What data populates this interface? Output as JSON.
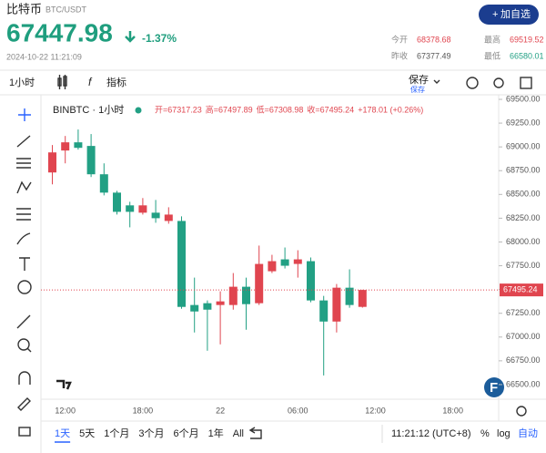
{
  "header": {
    "symbol": "比特币",
    "pair": "BTC/USDT",
    "price": "67447.98",
    "change": "-1.37%",
    "timestamp": "2024-10-22 11:21:09",
    "button": "加自选"
  },
  "stats": [
    {
      "label": "今开",
      "value": "68378.68",
      "color": "#e0454f"
    },
    {
      "label": "最高",
      "value": "69519.52",
      "color": "#e0454f"
    },
    {
      "label": "昨收",
      "value": "67377.49",
      "color": "#555555"
    },
    {
      "label": "最低",
      "value": "66580.01",
      "color": "#22a084"
    }
  ],
  "toolbar": {
    "interval": "1小时",
    "indicators": "指标",
    "save": "保存",
    "save_sub": "保存"
  },
  "chart_data": {
    "type": "candlestick",
    "title": "BINBTC · 1小时",
    "legend": [
      "开=67317.23",
      "高=67497.89",
      "低=67308.98",
      "收=67495.24",
      "+178.01 (+0.26%)"
    ],
    "categories": [
      null,
      "12:00",
      null,
      null,
      null,
      null,
      null,
      "18:00",
      null,
      null,
      null,
      null,
      null,
      "22",
      null,
      null,
      null,
      null,
      null,
      "06:00",
      null,
      null,
      null,
      null,
      null
    ],
    "xticks_after": [
      "12:00",
      "18:00"
    ],
    "open": [
      68731,
      68962,
      69048,
      69010,
      68712,
      68519,
      68385,
      68308,
      68308,
      68221,
      68221,
      67337,
      67356,
      67337,
      67337,
      67529,
      67356,
      67692,
      67817,
      67769,
      67798,
      67385,
      67163,
      67519,
      67317.23
    ],
    "high": [
      69019,
      69115,
      69183,
      69135,
      68827,
      68538,
      68423,
      68462,
      68442,
      68365,
      68269,
      67625,
      67385,
      67481,
      67673,
      67625,
      67962,
      67865,
      67942,
      67913,
      67837,
      67433,
      67558,
      67712,
      67497.89
    ],
    "low": [
      68606,
      68827,
      68971,
      68683,
      68490,
      68288,
      68154,
      68288,
      68202,
      68192,
      67298,
      67048,
      66856,
      66923,
      67288,
      67077,
      67337,
      67673,
      67721,
      67625,
      67366,
      66596,
      67048,
      67308,
      67308.98
    ],
    "close": [
      68942,
      69048,
      68990,
      68712,
      68519,
      68317,
      68317,
      68385,
      68250,
      68288,
      67317,
      67269,
      67288,
      67375,
      67529,
      67346,
      67769,
      67798,
      67750,
      67817,
      67385,
      67163,
      67519,
      67337,
      67495.24
    ],
    "up_color": "#e0454f",
    "down_color": "#22a084",
    "ylim": [
      66346,
      69548
    ],
    "yticks": [
      {
        "value": 66500,
        "label": "66500.00"
      },
      {
        "value": 66750,
        "label": "66750.00"
      },
      {
        "value": 67000,
        "label": "67000.00"
      },
      {
        "value": 67250,
        "label": "67250.00"
      },
      {
        "value": 67500,
        "label": "67500.00"
      },
      {
        "value": 67750,
        "label": "67750.00"
      },
      {
        "value": 68000,
        "label": "68000.00"
      },
      {
        "value": 68250,
        "label": "68250.00"
      },
      {
        "value": 68500,
        "label": "68500.00"
      },
      {
        "value": 68750,
        "label": "68750.00"
      },
      {
        "value": 69000,
        "label": "69000.00"
      },
      {
        "value": 69250,
        "label": "69250.00"
      },
      {
        "value": 69500,
        "label": "69500.00"
      }
    ]
  },
  "bottom": {
    "ranges": [
      "1天",
      "5天",
      "1个月",
      "3个月",
      "6个月",
      "1年",
      "All"
    ],
    "time": "11:21:12 (UTC+8)",
    "percent": "%",
    "log": "log",
    "auto": "自动"
  }
}
